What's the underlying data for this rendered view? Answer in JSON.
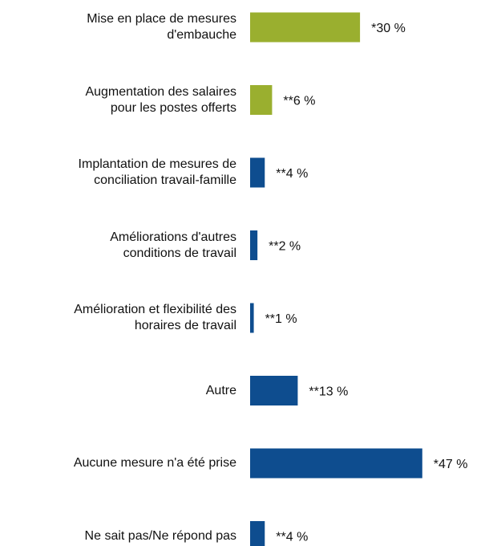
{
  "chart_data": {
    "type": "bar",
    "orientation": "horizontal",
    "categories": [
      "Mise en place de mesures\nd'embauche",
      "Augmentation des salaires\npour les postes offerts",
      "Implantation de mesures de\nconciliation travail-famille",
      "Améliorations d'autres\nconditions de travail",
      "Amélioration et flexibilité des\nhoraires de travail",
      "Autre",
      "Aucune mesure n'a été prise",
      "Ne sait pas/Ne répond pas"
    ],
    "values": [
      30,
      6,
      4,
      2,
      1,
      13,
      47,
      4
    ],
    "value_labels": [
      "*30 %",
      "**6 %",
      "**4 %",
      "**2 %",
      "**1 %",
      "**13 %",
      "*47 %",
      "**4 %"
    ],
    "colors": [
      "#9aaf2f",
      "#9aaf2f",
      "#0e4d8f",
      "#0e4d8f",
      "#0e4d8f",
      "#0e4d8f",
      "#0e4d8f",
      "#0e4d8f"
    ]
  }
}
